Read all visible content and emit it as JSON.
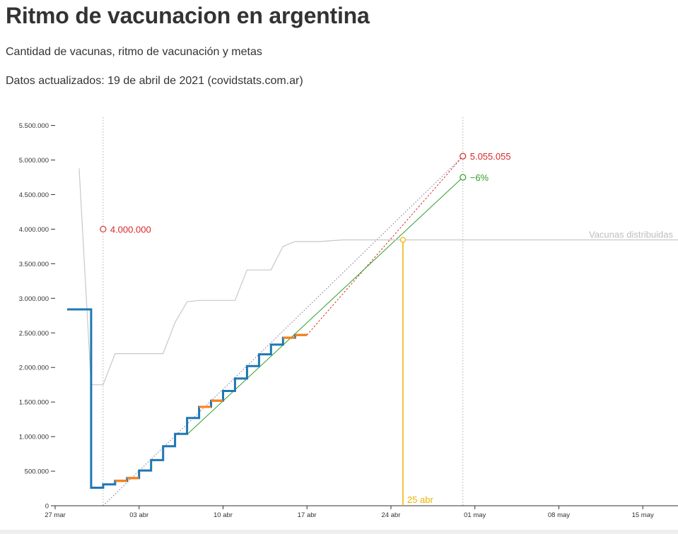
{
  "header": {
    "title": "Ritmo de vacunacion en argentina",
    "subtitle": "Cantidad de vacunas, ritmo de vacunación y metas",
    "updated": "Datos actualizados: 19 de abril de 2021 (covidstats.com.ar)"
  },
  "colors": {
    "applied": "#1f77b4",
    "steps_alt": "#ff7f0e",
    "distributed": "#c8c8c8",
    "goal": "#d62728",
    "trend": "#2ca02c",
    "crossing": "#f0b000",
    "text": "#333333"
  },
  "chart_data": {
    "type": "line",
    "title": "",
    "xlabel": "",
    "ylabel": "",
    "ylim": [
      0,
      5700000
    ],
    "xlim": [
      "2021-03-27",
      "2021-05-20"
    ],
    "x_ticks": [
      "27 mar",
      "03 abr",
      "10 abr",
      "17 abr",
      "24 abr",
      "01 may",
      "08 may",
      "15 may"
    ],
    "y_ticks": [
      "0",
      "500.000",
      "1.000.000",
      "1.500.000",
      "2.000.000",
      "2.500.000",
      "3.000.000",
      "3.500.000",
      "4.000.000",
      "4.500.000",
      "5.000.000",
      "5.500.000"
    ],
    "y_tick_values": [
      0,
      500000,
      1000000,
      1500000,
      2000000,
      2500000,
      3000000,
      3500000,
      4000000,
      4500000,
      5000000,
      5500000
    ],
    "series": [
      {
        "name": "Vacunas distribuidas",
        "x": [
          "2021-03-29",
          "2021-03-30",
          "2021-03-31",
          "2021-04-01",
          "2021-04-02",
          "2021-04-05",
          "2021-04-06",
          "2021-04-07",
          "2021-04-08",
          "2021-04-09",
          "2021-04-11",
          "2021-04-12",
          "2021-04-14",
          "2021-04-15",
          "2021-04-16",
          "2021-04-18",
          "2021-04-20",
          "2021-04-25",
          "2021-05-20"
        ],
        "values": [
          4880000,
          1750000,
          1750000,
          2200000,
          2200000,
          2200000,
          2650000,
          2950000,
          2970000,
          2970000,
          2970000,
          3410000,
          3410000,
          3750000,
          3820000,
          3820000,
          3845000,
          3845000,
          3845000
        ]
      },
      {
        "name": "Vacunas aplicadas",
        "x": [
          "2021-03-29",
          "2021-03-30",
          "2021-03-31",
          "2021-04-01",
          "2021-04-02",
          "2021-04-03",
          "2021-04-04",
          "2021-04-05",
          "2021-04-06",
          "2021-04-07",
          "2021-04-08",
          "2021-04-09",
          "2021-04-10",
          "2021-04-11",
          "2021-04-12",
          "2021-04-13",
          "2021-04-14",
          "2021-04-15",
          "2021-04-16",
          "2021-04-17"
        ],
        "values": [
          2840000,
          260000,
          310000,
          360000,
          400000,
          510000,
          660000,
          860000,
          1040000,
          1270000,
          1430000,
          1520000,
          1660000,
          1840000,
          2020000,
          2190000,
          2330000,
          2430000,
          2470000,
          2470000
        ]
      }
    ],
    "annotations": [
      {
        "label": "4.000.000",
        "x": "2021-03-31",
        "y": 4000000
      },
      {
        "label": "5.055.055",
        "x": "2021-04-30",
        "y": 5055055
      },
      {
        "label": "−6%",
        "x": "2021-04-30",
        "y": 4750000
      },
      {
        "label": "25 abr",
        "x": "2021-04-25",
        "y": 3845000
      }
    ],
    "series_label": "Vacunas distribuidas",
    "reference_lines": [
      {
        "kind": "vertical",
        "x": "2021-03-31"
      },
      {
        "kind": "vertical",
        "x": "2021-04-30"
      },
      {
        "kind": "goal-dotted",
        "x": [
          "2021-03-31",
          "2021-04-30"
        ],
        "y": [
          0,
          5055055
        ]
      },
      {
        "kind": "projection",
        "x": [
          "2021-04-17",
          "2021-04-30"
        ],
        "y": [
          2470000,
          5055055
        ]
      },
      {
        "kind": "trend",
        "x": [
          "2021-04-07",
          "2021-04-30"
        ],
        "y": [
          1030000,
          4750000
        ]
      },
      {
        "kind": "crossing",
        "x": [
          "2021-04-25",
          "2021-04-25"
        ],
        "y": [
          0,
          3845000
        ]
      }
    ],
    "grid": false,
    "legend": "none"
  }
}
